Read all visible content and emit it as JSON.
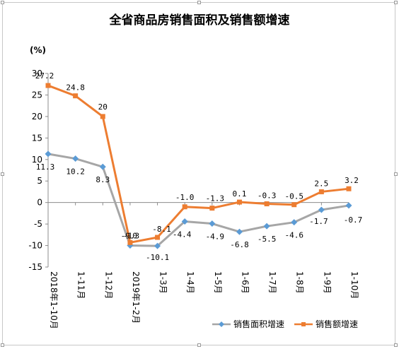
{
  "chart_data": {
    "type": "line",
    "title": "全省商品房销售面积及销售额增速",
    "ylabel": "(%)",
    "xlabel": "",
    "ylim": [
      -15,
      30
    ],
    "yticks": [
      -15,
      -10,
      -5,
      0,
      5,
      10,
      15,
      20,
      25,
      30
    ],
    "categories": [
      "2018年1-10月",
      "1-11月",
      "1-12月",
      "2019年1-2月",
      "1-3月",
      "1-4月",
      "1-5月",
      "1-6月",
      "1-7月",
      "1-8月",
      "1-9月",
      "1-10月"
    ],
    "series": [
      {
        "name": "销售面积增速",
        "color": "#a6a6a6",
        "marker_color": "#5b9bd5",
        "marker": "diamond",
        "values": [
          11.3,
          10.2,
          8.3,
          -10,
          -10.1,
          -4.4,
          -4.9,
          -6.8,
          -5.5,
          -4.6,
          -1.7,
          -0.7
        ],
        "labels": [
          "11.3",
          "10.2",
          "8.3",
          "-10",
          "-10.1",
          "-4.4",
          "-4.9",
          "-6.8",
          "-5.5",
          "-4.6",
          "-1.7",
          "-0.7"
        ]
      },
      {
        "name": "销售额增速",
        "color": "#ed7d31",
        "marker_color": "#ed7d31",
        "marker": "square",
        "values": [
          27.2,
          24.8,
          20,
          -9.3,
          -8.1,
          -1.0,
          -1.3,
          0.1,
          -0.3,
          -0.5,
          2.5,
          3.2
        ],
        "labels": [
          "27.2",
          "24.8",
          "20",
          "-9.3",
          "-8.1",
          "-1.0",
          "-1.3",
          "0.1",
          "-0.3",
          "-0.5",
          "2.5",
          "3.2"
        ]
      }
    ],
    "grid": false,
    "legend_position": "bottom-right"
  }
}
